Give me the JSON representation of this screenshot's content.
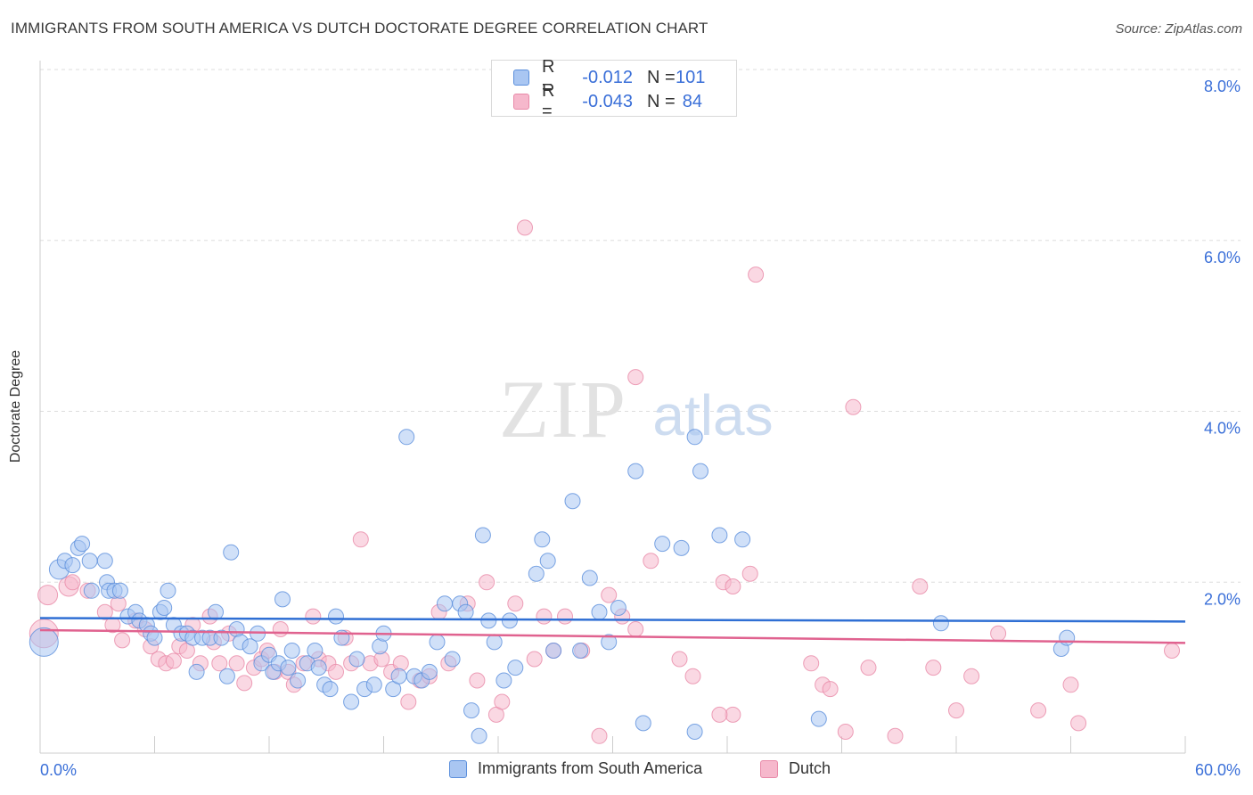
{
  "title": "IMMIGRANTS FROM SOUTH AMERICA VS DUTCH DOCTORATE DEGREE CORRELATION CHART",
  "source": "Source: ZipAtlas.com",
  "watermark": {
    "zip": "ZIP",
    "atlas": "atlas"
  },
  "legend": {
    "rows": [
      {
        "r_label": "R =",
        "r_value": "-0.012",
        "n_label": "N =",
        "n_value": "101"
      },
      {
        "r_label": "R =",
        "r_value": "-0.043",
        "n_label": "N =",
        "n_value": "84"
      }
    ]
  },
  "bottom_legend": {
    "series1": "Immigrants from South America",
    "series2": "Dutch"
  },
  "colors": {
    "blue_fill": "#a9c6f2",
    "blue_stroke": "#5b8fdc",
    "blue_line": "#2f6fd4",
    "pink_fill": "#f6b8cc",
    "pink_stroke": "#e889a8",
    "pink_line": "#e0628f",
    "tick_label": "#3a6fd8",
    "grid": "#dddddd"
  },
  "chart_data": {
    "type": "scatter",
    "title": "IMMIGRANTS FROM SOUTH AMERICA VS DUTCH DOCTORATE DEGREE CORRELATION CHART",
    "xlabel": "",
    "ylabel": "Doctorate Degree",
    "xlim": [
      0,
      60
    ],
    "ylim": [
      0,
      8
    ],
    "x_tick_labels": [
      "0.0%",
      "60.0%"
    ],
    "y_ticks": [
      2,
      4,
      6,
      8
    ],
    "y_tick_labels": [
      "2.0%",
      "4.0%",
      "6.0%",
      "8.0%"
    ],
    "grid": "horizontal dashed",
    "series": [
      {
        "name": "Immigrants from South America",
        "trend": {
          "y_at_x0": 1.58,
          "y_at_x60": 1.54
        },
        "points": [
          [
            0.2,
            1.3,
            3
          ],
          [
            1.0,
            2.15,
            2
          ],
          [
            1.3,
            2.25,
            1
          ],
          [
            1.7,
            2.2,
            1
          ],
          [
            2.0,
            2.4,
            1
          ],
          [
            2.2,
            2.45,
            1
          ],
          [
            2.6,
            2.25,
            1
          ],
          [
            2.7,
            1.9,
            1
          ],
          [
            3.4,
            2.25,
            1
          ],
          [
            3.5,
            2.0,
            1
          ],
          [
            3.6,
            1.9,
            1
          ],
          [
            3.9,
            1.9,
            1
          ],
          [
            4.2,
            1.9,
            1
          ],
          [
            4.6,
            1.6,
            1
          ],
          [
            5.0,
            1.65,
            1
          ],
          [
            5.2,
            1.55,
            1
          ],
          [
            5.6,
            1.5,
            1
          ],
          [
            5.8,
            1.4,
            1
          ],
          [
            6.0,
            1.35,
            1
          ],
          [
            6.3,
            1.65,
            1
          ],
          [
            6.5,
            1.7,
            1
          ],
          [
            6.7,
            1.9,
            1
          ],
          [
            7.0,
            1.5,
            1
          ],
          [
            7.4,
            1.4,
            1
          ],
          [
            7.7,
            1.4,
            1
          ],
          [
            8.0,
            1.35,
            1
          ],
          [
            8.2,
            0.95,
            1
          ],
          [
            8.5,
            1.35,
            1
          ],
          [
            8.9,
            1.35,
            1
          ],
          [
            9.2,
            1.65,
            1
          ],
          [
            9.5,
            1.35,
            1
          ],
          [
            9.8,
            0.9,
            1
          ],
          [
            10.0,
            2.35,
            1
          ],
          [
            10.3,
            1.45,
            1
          ],
          [
            10.5,
            1.3,
            1
          ],
          [
            11.0,
            1.25,
            1
          ],
          [
            11.4,
            1.4,
            1
          ],
          [
            11.6,
            1.05,
            1
          ],
          [
            12.0,
            1.15,
            1
          ],
          [
            12.2,
            0.95,
            1
          ],
          [
            12.5,
            1.05,
            1
          ],
          [
            12.7,
            1.8,
            1
          ],
          [
            13.0,
            1.0,
            1
          ],
          [
            13.2,
            1.2,
            1
          ],
          [
            13.5,
            0.85,
            1
          ],
          [
            14.0,
            1.05,
            1
          ],
          [
            14.4,
            1.2,
            1
          ],
          [
            14.6,
            1.0,
            1
          ],
          [
            14.9,
            0.8,
            1
          ],
          [
            15.2,
            0.75,
            1
          ],
          [
            15.5,
            1.6,
            1
          ],
          [
            15.8,
            1.35,
            1
          ],
          [
            16.3,
            0.6,
            1
          ],
          [
            16.6,
            1.1,
            1
          ],
          [
            17.0,
            0.75,
            1
          ],
          [
            17.5,
            0.8,
            1
          ],
          [
            17.8,
            1.25,
            1
          ],
          [
            18.0,
            1.4,
            1
          ],
          [
            18.5,
            0.75,
            1
          ],
          [
            18.8,
            0.9,
            1
          ],
          [
            19.2,
            3.7,
            1
          ],
          [
            19.6,
            0.9,
            1
          ],
          [
            20.0,
            0.85,
            1
          ],
          [
            20.4,
            0.95,
            1
          ],
          [
            20.8,
            1.3,
            1
          ],
          [
            21.2,
            1.75,
            1
          ],
          [
            21.6,
            1.1,
            1
          ],
          [
            22.0,
            1.75,
            1
          ],
          [
            22.3,
            1.65,
            1
          ],
          [
            22.6,
            0.5,
            1
          ],
          [
            23.0,
            0.2,
            1
          ],
          [
            23.2,
            2.55,
            1
          ],
          [
            23.5,
            1.55,
            1
          ],
          [
            23.8,
            1.3,
            1
          ],
          [
            24.3,
            0.85,
            1
          ],
          [
            24.6,
            1.55,
            1
          ],
          [
            24.9,
            1.0,
            1
          ],
          [
            26.0,
            2.1,
            1
          ],
          [
            26.3,
            2.5,
            1
          ],
          [
            26.6,
            2.25,
            1
          ],
          [
            26.9,
            1.2,
            1
          ],
          [
            27.9,
            2.95,
            1
          ],
          [
            28.3,
            1.2,
            1
          ],
          [
            28.8,
            2.05,
            1
          ],
          [
            29.3,
            1.65,
            1
          ],
          [
            29.8,
            1.3,
            1
          ],
          [
            30.3,
            1.7,
            1
          ],
          [
            31.2,
            3.3,
            1
          ],
          [
            31.6,
            0.35,
            1
          ],
          [
            32.6,
            2.45,
            1
          ],
          [
            33.6,
            2.4,
            1
          ],
          [
            34.3,
            3.7,
            1
          ],
          [
            34.6,
            3.3,
            1
          ],
          [
            35.6,
            2.55,
            1
          ],
          [
            34.3,
            0.25,
            1
          ],
          [
            36.8,
            2.5,
            1
          ],
          [
            40.8,
            0.4,
            1
          ],
          [
            47.2,
            1.52,
            1
          ],
          [
            53.5,
            1.22,
            1
          ],
          [
            53.8,
            1.35,
            1
          ]
        ]
      },
      {
        "name": "Dutch",
        "trend": {
          "y_at_x0": 1.44,
          "y_at_x60": 1.29
        },
        "points": [
          [
            0.2,
            1.4,
            3
          ],
          [
            0.4,
            1.85,
            2
          ],
          [
            1.5,
            1.95,
            2
          ],
          [
            1.7,
            2.0,
            1
          ],
          [
            2.5,
            1.9,
            1
          ],
          [
            3.4,
            1.65,
            1
          ],
          [
            3.8,
            1.5,
            1
          ],
          [
            4.1,
            1.75,
            1
          ],
          [
            4.3,
            1.32,
            1
          ],
          [
            5.0,
            1.55,
            1
          ],
          [
            5.5,
            1.45,
            1
          ],
          [
            5.8,
            1.25,
            1
          ],
          [
            6.2,
            1.1,
            1
          ],
          [
            6.6,
            1.05,
            1
          ],
          [
            7.0,
            1.08,
            1
          ],
          [
            7.3,
            1.25,
            1
          ],
          [
            7.7,
            1.2,
            1
          ],
          [
            8.0,
            1.5,
            1
          ],
          [
            8.4,
            1.05,
            1
          ],
          [
            8.9,
            1.6,
            1
          ],
          [
            9.1,
            1.3,
            1
          ],
          [
            9.4,
            1.05,
            1
          ],
          [
            9.9,
            1.4,
            1
          ],
          [
            10.3,
            1.05,
            1
          ],
          [
            10.7,
            0.82,
            1
          ],
          [
            11.2,
            1.0,
            1
          ],
          [
            11.6,
            1.1,
            1
          ],
          [
            11.9,
            1.2,
            1
          ],
          [
            12.3,
            0.95,
            1
          ],
          [
            12.6,
            1.45,
            1
          ],
          [
            13.0,
            0.95,
            1
          ],
          [
            13.3,
            0.8,
            1
          ],
          [
            13.8,
            1.05,
            1
          ],
          [
            14.3,
            1.6,
            1
          ],
          [
            14.6,
            1.1,
            1
          ],
          [
            15.1,
            1.05,
            1
          ],
          [
            15.5,
            0.95,
            1
          ],
          [
            16.0,
            1.35,
            1
          ],
          [
            16.3,
            1.05,
            1
          ],
          [
            16.8,
            2.5,
            1
          ],
          [
            17.3,
            1.05,
            1
          ],
          [
            17.9,
            1.1,
            1
          ],
          [
            18.4,
            0.95,
            1
          ],
          [
            18.9,
            1.05,
            1
          ],
          [
            19.3,
            0.6,
            1
          ],
          [
            19.9,
            0.85,
            1
          ],
          [
            20.4,
            0.9,
            1
          ],
          [
            20.9,
            1.65,
            1
          ],
          [
            21.4,
            1.05,
            1
          ],
          [
            22.4,
            1.75,
            1
          ],
          [
            22.9,
            0.85,
            1
          ],
          [
            23.4,
            2.0,
            1
          ],
          [
            23.9,
            0.45,
            1
          ],
          [
            24.2,
            0.6,
            1
          ],
          [
            24.9,
            1.75,
            1
          ],
          [
            25.4,
            6.15,
            1
          ],
          [
            25.9,
            1.1,
            1
          ],
          [
            26.4,
            1.6,
            1
          ],
          [
            26.9,
            1.2,
            1
          ],
          [
            27.5,
            1.6,
            1
          ],
          [
            28.4,
            1.2,
            1
          ],
          [
            29.3,
            0.2,
            1
          ],
          [
            29.8,
            1.85,
            1
          ],
          [
            30.5,
            1.6,
            1
          ],
          [
            31.2,
            1.45,
            1
          ],
          [
            32.0,
            2.25,
            1
          ],
          [
            31.2,
            4.4,
            1
          ],
          [
            33.5,
            1.1,
            1
          ],
          [
            34.2,
            0.9,
            1
          ],
          [
            35.8,
            2.0,
            1
          ],
          [
            36.3,
            1.95,
            1
          ],
          [
            37.2,
            2.1,
            1
          ],
          [
            37.5,
            5.6,
            1
          ],
          [
            40.4,
            1.05,
            1
          ],
          [
            41.0,
            0.8,
            1
          ],
          [
            41.4,
            0.75,
            1
          ],
          [
            42.2,
            0.25,
            1
          ],
          [
            42.6,
            4.05,
            1
          ],
          [
            43.4,
            1.0,
            1
          ],
          [
            44.8,
            0.2,
            1
          ],
          [
            46.1,
            1.95,
            1
          ],
          [
            46.8,
            1.0,
            1
          ],
          [
            48.0,
            0.5,
            1
          ],
          [
            48.8,
            0.9,
            1
          ],
          [
            50.2,
            1.4,
            1
          ],
          [
            52.3,
            0.5,
            1
          ],
          [
            54.0,
            0.8,
            1
          ],
          [
            54.4,
            0.35,
            1
          ],
          [
            59.3,
            1.2,
            1
          ],
          [
            36.3,
            0.45,
            1
          ],
          [
            35.6,
            0.45,
            1
          ]
        ]
      }
    ]
  }
}
